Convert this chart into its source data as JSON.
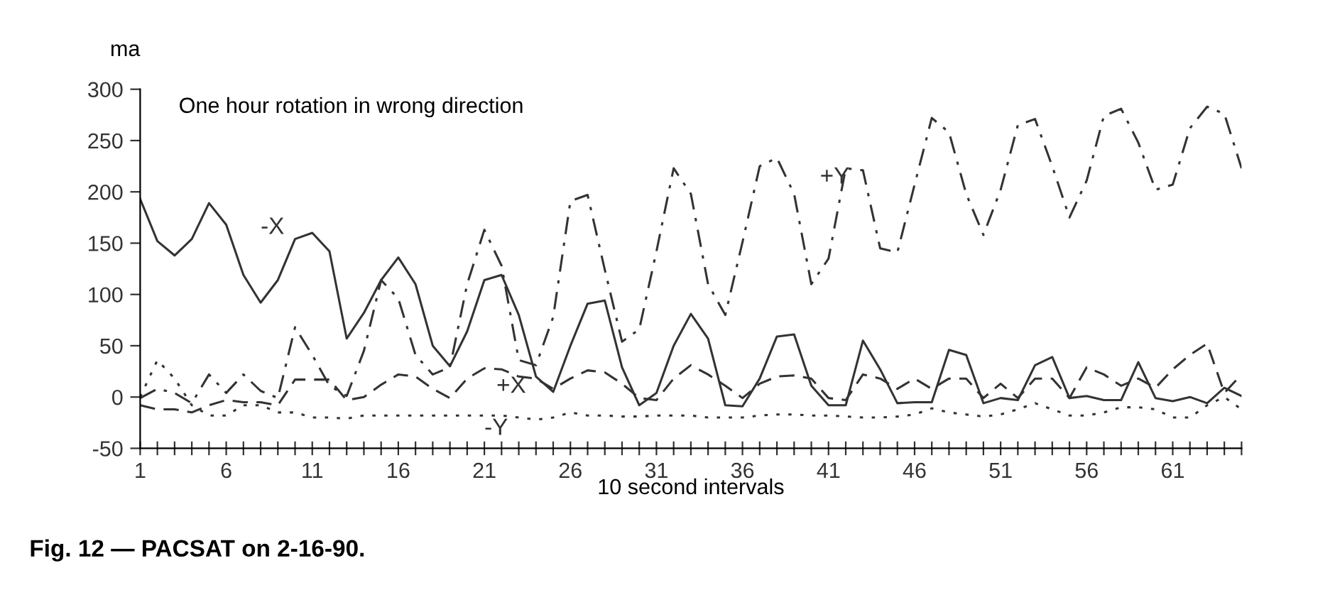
{
  "chart_data": {
    "type": "line",
    "title": "One hour rotation in wrong direction",
    "ylabel": "ma",
    "xlabel": "10 second intervals",
    "x": [
      1,
      2,
      3,
      4,
      5,
      6,
      7,
      8,
      9,
      10,
      11,
      12,
      13,
      14,
      15,
      16,
      17,
      18,
      19,
      20,
      21,
      22,
      23,
      24,
      25,
      26,
      27,
      28,
      29,
      30,
      31,
      32,
      33,
      34,
      35,
      36,
      37,
      38,
      39,
      40,
      41,
      42,
      43,
      44,
      45,
      46,
      47,
      48,
      49,
      50,
      51,
      52,
      53,
      54,
      55,
      56,
      57,
      58,
      59,
      60,
      61,
      62,
      63,
      64,
      65
    ],
    "series": [
      {
        "name": "-X",
        "color": "#333333",
        "line_style": "solid",
        "values": [
          193,
          152,
          138,
          154,
          189,
          168,
          119,
          92,
          114,
          154,
          160,
          142,
          57,
          82,
          114,
          136,
          110,
          50,
          30,
          64,
          114,
          119,
          80,
          20,
          5,
          50,
          91,
          94,
          29,
          -8,
          4,
          50,
          81,
          57,
          -8,
          -9,
          18,
          59,
          61,
          11,
          -8,
          -8,
          55,
          27,
          -6,
          -5,
          -5,
          46,
          41,
          -6,
          -1,
          -3,
          31,
          39,
          -1,
          1,
          -3,
          -3,
          34,
          -1,
          -4,
          0,
          -6,
          9,
          1
        ]
      },
      {
        "name": "+Y",
        "color": "#333333",
        "line_style": "dashdot",
        "values": [
          -1,
          8,
          4,
          -6,
          22,
          4,
          22,
          6,
          -1,
          68,
          41,
          11,
          1,
          45,
          114,
          96,
          41,
          22,
          29,
          110,
          163,
          128,
          36,
          31,
          78,
          191,
          197,
          124,
          54,
          66,
          142,
          223,
          198,
          110,
          80,
          151,
          225,
          233,
          198,
          110,
          135,
          223,
          221,
          145,
          141,
          207,
          272,
          258,
          198,
          158,
          202,
          265,
          271,
          225,
          175,
          211,
          274,
          281,
          248,
          202,
          207,
          262,
          283,
          276,
          223
        ]
      },
      {
        "name": "+X",
        "color": "#333333",
        "line_style": "dashed",
        "values": [
          -8,
          -12,
          -12,
          -15,
          -8,
          -3,
          -5,
          -5,
          -8,
          17,
          17,
          17,
          -3,
          0,
          12,
          22,
          20,
          8,
          -1,
          18,
          28,
          27,
          20,
          18,
          8,
          18,
          26,
          24,
          13,
          -1,
          -3,
          18,
          31,
          22,
          11,
          -1,
          13,
          20,
          21,
          18,
          -1,
          -3,
          22,
          18,
          8,
          18,
          8,
          18,
          18,
          -1,
          13,
          -1,
          18,
          18,
          -1,
          29,
          22,
          11,
          18,
          9,
          27,
          41,
          52,
          4,
          22
        ]
      },
      {
        "name": "-Y",
        "color": "#333333",
        "line_style": "dotted",
        "values": [
          0,
          36,
          18,
          -8,
          -18,
          -18,
          -8,
          -8,
          -15,
          -15,
          -20,
          -20,
          -21,
          -18,
          -18,
          -18,
          -18,
          -18,
          -18,
          -18,
          -18,
          -18,
          -20,
          -22,
          -20,
          -15,
          -18,
          -18,
          -19,
          -19,
          -18,
          -18,
          -18,
          -20,
          -20,
          -20,
          -18,
          -17,
          -17,
          -18,
          -18,
          -19,
          -20,
          -20,
          -19,
          -17,
          -11,
          -15,
          -17,
          -19,
          -17,
          -12,
          -6,
          -12,
          -18,
          -18,
          -15,
          -10,
          -10,
          -12,
          -20,
          -20,
          -8,
          0,
          -12
        ]
      }
    ],
    "xlim": [
      1,
      65
    ],
    "ylim": [
      -50,
      300
    ],
    "yticks": [
      -50,
      0,
      50,
      100,
      150,
      200,
      250,
      300
    ],
    "xticks": [
      1,
      {
        "value": 2,
        "label": null
      },
      {
        "value": 3,
        "label": null
      },
      {
        "value": 4,
        "label": null
      },
      {
        "value": 5,
        "label": null
      },
      6,
      {
        "value": 7,
        "label": null
      },
      {
        "value": 8,
        "label": null
      },
      {
        "value": 9,
        "label": null
      },
      {
        "value": 10,
        "label": null
      },
      11,
      {
        "value": 12,
        "label": null
      },
      {
        "value": 13,
        "label": null
      },
      {
        "value": 14,
        "label": null
      },
      {
        "value": 15,
        "label": null
      },
      16,
      {
        "value": 17,
        "label": null
      },
      {
        "value": 18,
        "label": null
      },
      {
        "value": 19,
        "label": null
      },
      {
        "value": 20,
        "label": null
      },
      21,
      {
        "value": 22,
        "label": null
      },
      {
        "value": 23,
        "label": null
      },
      {
        "value": 24,
        "label": null
      },
      {
        "value": 25,
        "label": null
      },
      26,
      {
        "value": 27,
        "label": null
      },
      {
        "value": 28,
        "label": null
      },
      {
        "value": 29,
        "label": null
      },
      {
        "value": 30,
        "label": null
      },
      31,
      {
        "value": 32,
        "label": null
      },
      {
        "value": 33,
        "label": null
      },
      {
        "value": 34,
        "label": null
      },
      {
        "value": 35,
        "label": null
      },
      36,
      {
        "value": 37,
        "label": null
      },
      {
        "value": 38,
        "label": null
      },
      {
        "value": 39,
        "label": null
      },
      {
        "value": 40,
        "label": null
      },
      41,
      {
        "value": 42,
        "label": null
      },
      {
        "value": 43,
        "label": null
      },
      {
        "value": 44,
        "label": null
      },
      {
        "value": 45,
        "label": null
      },
      46,
      {
        "value": 47,
        "label": null
      },
      {
        "value": 48,
        "label": null
      },
      {
        "value": 49,
        "label": null
      },
      {
        "value": 50,
        "label": null
      },
      51,
      {
        "value": 52,
        "label": null
      },
      {
        "value": 53,
        "label": null
      },
      {
        "value": 54,
        "label": null
      },
      {
        "value": 55,
        "label": null
      },
      56,
      {
        "value": 57,
        "label": null
      },
      {
        "value": 58,
        "label": null
      },
      {
        "value": 59,
        "label": null
      },
      {
        "value": 60,
        "label": null
      },
      61,
      {
        "value": 62,
        "label": null
      },
      {
        "value": 63,
        "label": null
      },
      {
        "value": 64,
        "label": null
      },
      {
        "value": 65,
        "label": null
      }
    ],
    "grid": false,
    "annotations": [
      "Fig. 12 — PACSAT on 2-16-90."
    ]
  }
}
